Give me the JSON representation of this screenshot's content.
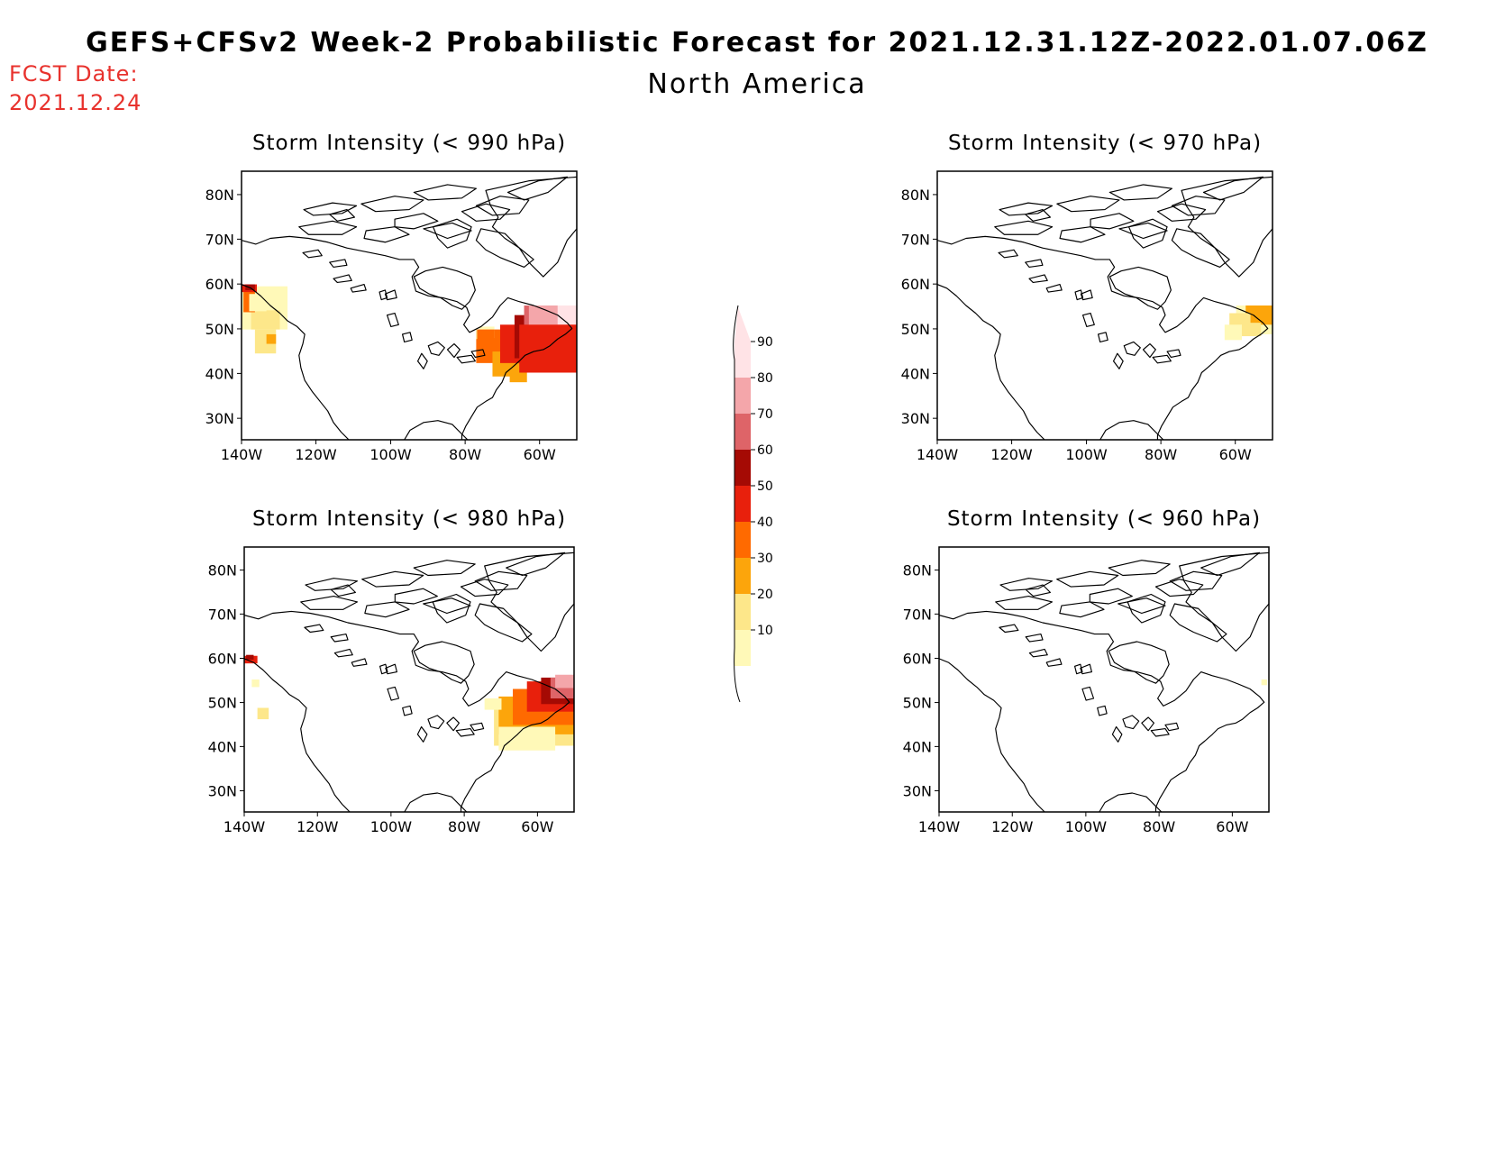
{
  "header": {
    "title": "GEFS+CFSv2 Week-2 Probabilistic Forecast for 2021.12.31.12Z-2022.01.07.06Z",
    "region": "North America",
    "fcst_label": "FCST Date:",
    "fcst_date": "2021.12.24"
  },
  "colorbar": {
    "levels": [
      "10",
      "20",
      "30",
      "40",
      "50",
      "60",
      "70",
      "80",
      "90"
    ],
    "colors": [
      "#fff9b8",
      "#fde78a",
      "#fca50b",
      "#ff6a00",
      "#e8200c",
      "#a50a04",
      "#de6468",
      "#f4a6aa",
      "#ffe3e6"
    ]
  },
  "axis": {
    "lat_labels": [
      "80N",
      "70N",
      "60N",
      "50N",
      "40N",
      "30N"
    ],
    "lon_labels": [
      "140W",
      "120W",
      "100W",
      "80W",
      "60W"
    ]
  },
  "panels": [
    {
      "id": "p990",
      "title": "Storm Intensity (< 990 hPa)"
    },
    {
      "id": "p970",
      "title": "Storm Intensity (< 970 hPa)"
    },
    {
      "id": "p980",
      "title": "Storm Intensity (< 980 hPa)"
    },
    {
      "id": "p960",
      "title": "Storm Intensity (< 960 hPa)"
    }
  ]
}
